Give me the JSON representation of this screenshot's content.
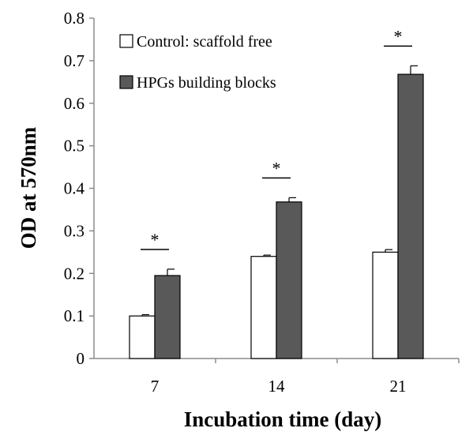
{
  "chart_data": {
    "type": "bar",
    "categories": [
      "7",
      "14",
      "21"
    ],
    "series": [
      {
        "name": "Control: scaffold free",
        "values": [
          0.1,
          0.24,
          0.25
        ],
        "errors": [
          0.003,
          0.003,
          0.006
        ],
        "color": "#ffffff"
      },
      {
        "name": "HPGs building blocks",
        "values": [
          0.195,
          0.368,
          0.668
        ],
        "errors": [
          0.015,
          0.01,
          0.02
        ],
        "color": "#595959"
      }
    ],
    "significance": [
      "*",
      "*",
      "*"
    ],
    "xlabel": "Incubation time (day)",
    "ylabel": "OD at 570nm",
    "ylim": [
      0,
      0.8
    ],
    "yticks": [
      "0",
      "0.1",
      "0.2",
      "0.3",
      "0.4",
      "0.5",
      "0.6",
      "0.7",
      "0.8"
    ],
    "legend_position": "top-left",
    "grid": false
  }
}
